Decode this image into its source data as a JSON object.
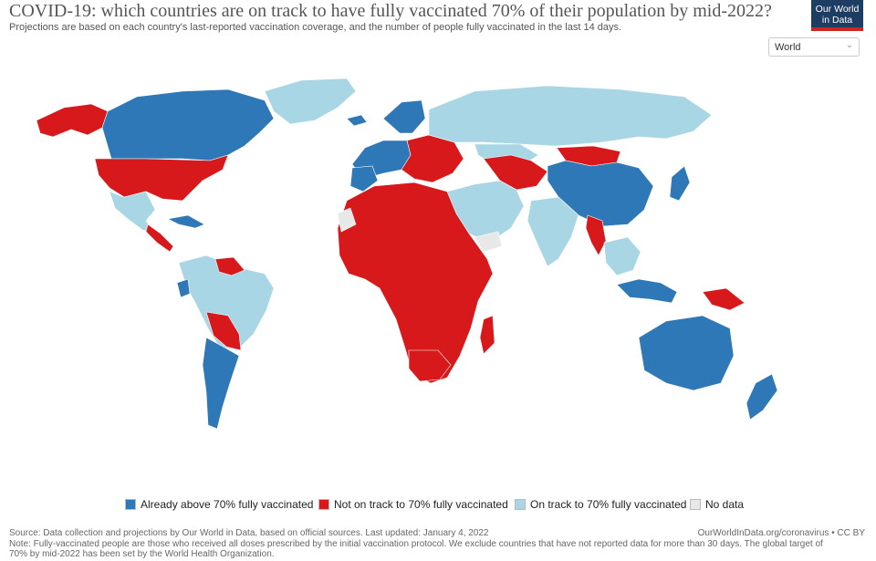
{
  "header": {
    "title": "COVID-19: which countries are on track to have fully vaccinated 70% of their population by mid-2022?",
    "subtitle": "Projections are based on each country's last-reported vaccination coverage, and the number of people fully vaccinated in the last 14 days.",
    "logo_line1": "Our World",
    "logo_line2": "in Data"
  },
  "controls": {
    "region_select": "World",
    "chevron": "chevron-down-icon"
  },
  "colors": {
    "above": "#2e78b7",
    "not_on_track": "#d7191c",
    "on_track": "#a9d6e5",
    "no_data": "#e8e8e8",
    "ocean": "#ffffff"
  },
  "legend": {
    "above": "Already above 70% fully vaccinated",
    "not_on_track": "Not on track to 70% fully vaccinated",
    "on_track": "On track to 70% fully vaccinated",
    "no_data": "No data"
  },
  "footer": {
    "source": "Source: Data collection and projections by Our World in Data, based on official sources. Last updated: January 4, 2022",
    "credit": "OurWorldInData.org/coronavirus • CC BY",
    "note": "Note: Fully-vaccinated people are those who received all doses prescribed by the initial vaccination protocol. We exclude countries that have not reported data for more than 30 days. The global target of 70% by mid-2022 has been set by the World Health Organization."
  },
  "map_regions": {
    "north_america_north": "above",
    "alaska": "not_on_track",
    "usa": "not_on_track",
    "greenland": "on_track",
    "mexico": "on_track",
    "central_america": "not_on_track",
    "caribbean_cuba": "above",
    "south_america_east": "on_track",
    "venezuela": "not_on_track",
    "ecuador": "above",
    "bolivia_paraguay": "not_on_track",
    "argentina_chile": "above",
    "western_europe": "above",
    "scandinavia": "above",
    "eastern_europe": "not_on_track",
    "russia": "on_track",
    "africa": "not_on_track",
    "north_africa_morocco": "above",
    "western_sahara": "no_data",
    "south_africa": "not_on_track",
    "madagascar": "not_on_track",
    "middle_east": "on_track",
    "yemen_area": "no_data",
    "central_asia": "not_on_track",
    "kazakhstan": "on_track",
    "mongolia": "not_on_track",
    "china": "above",
    "japan": "above",
    "india": "on_track",
    "myanmar": "not_on_track",
    "southeast_asia": "on_track",
    "indonesia_islands": "above",
    "papua_new_guinea": "not_on_track",
    "australia": "above",
    "new_zealand": "above",
    "iceland": "above"
  }
}
